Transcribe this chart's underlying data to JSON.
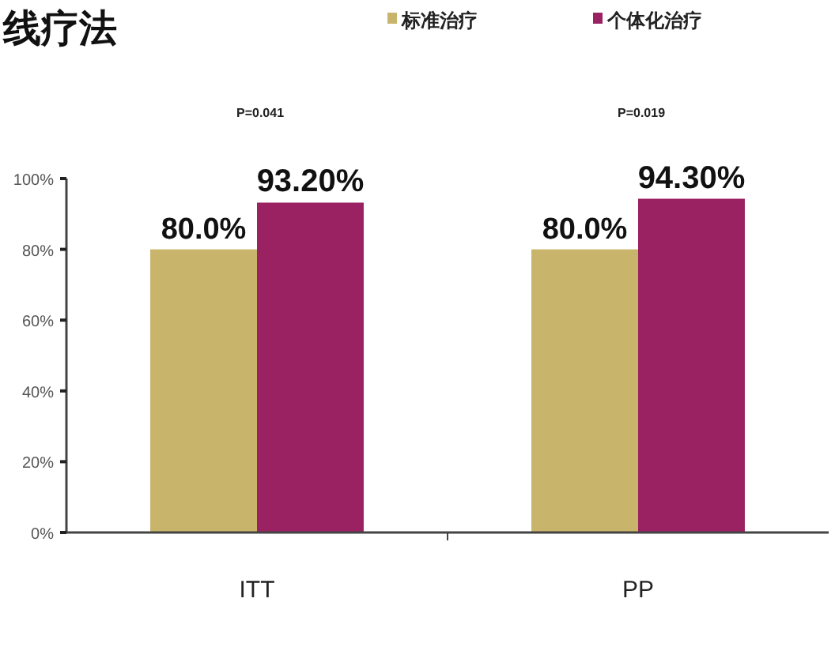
{
  "chart_data": {
    "type": "bar",
    "title": "线疗法",
    "categories": [
      "ITT",
      "PP"
    ],
    "series": [
      {
        "name": "标准治疗",
        "color": "#c8b46a",
        "values": [
          80,
          80
        ],
        "value_labels": [
          "80.0%",
          "80.0%"
        ]
      },
      {
        "name": "个体化治疗",
        "color": "#9a2262",
        "values": [
          93.2,
          94.3
        ],
        "value_labels": [
          "93.20%",
          "94.30%"
        ]
      }
    ],
    "ylim": [
      0,
      100
    ],
    "yticks": [
      {
        "value": 0,
        "label": "0%"
      },
      {
        "value": 20,
        "label": "20%"
      },
      {
        "value": 40,
        "label": "40%"
      },
      {
        "value": 60,
        "label": "60%"
      },
      {
        "value": 80,
        "label": "80%"
      },
      {
        "value": 100,
        "label": "100%"
      }
    ],
    "annotations": [
      "P=0.041",
      "P=0.019"
    ],
    "legend": "top right",
    "grid": false
  }
}
